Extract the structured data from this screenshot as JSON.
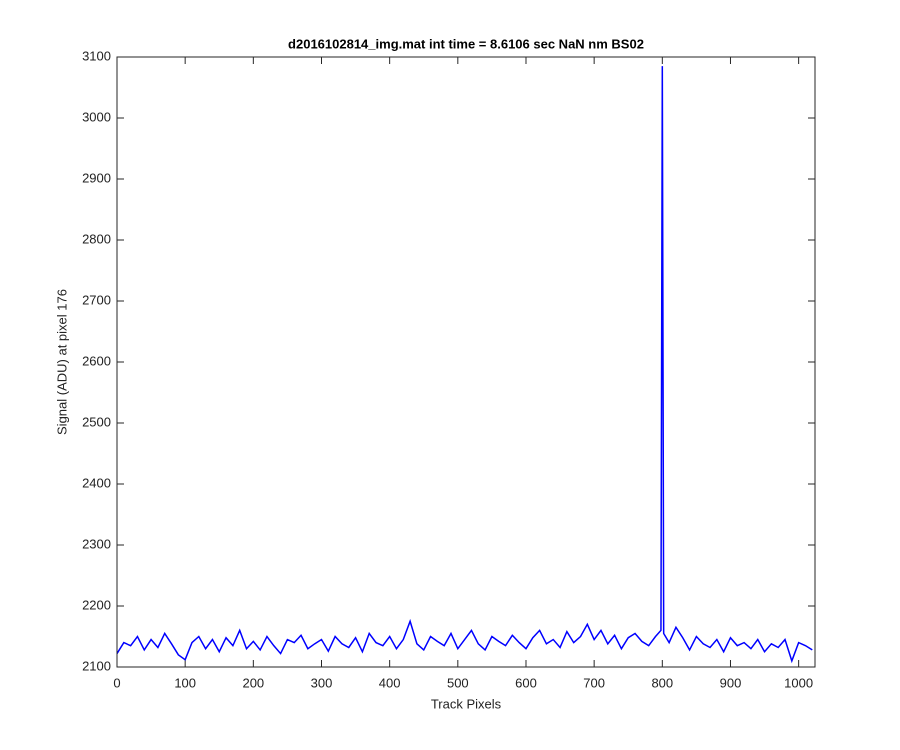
{
  "chart_data": {
    "type": "line",
    "title": "d2016102814_img.mat int time = 8.6106 sec  NaN nm BS02",
    "x_label": "Track Pixels",
    "y_label": "Signal (ADU) at pixel 176",
    "x": [
      0,
      10,
      20,
      30,
      40,
      50,
      60,
      70,
      80,
      90,
      100,
      110,
      120,
      130,
      140,
      150,
      160,
      170,
      180,
      190,
      200,
      210,
      220,
      230,
      240,
      250,
      260,
      270,
      280,
      290,
      300,
      310,
      320,
      330,
      340,
      350,
      360,
      370,
      380,
      390,
      400,
      410,
      420,
      430,
      440,
      450,
      460,
      470,
      480,
      490,
      500,
      510,
      520,
      530,
      540,
      550,
      560,
      570,
      580,
      590,
      600,
      610,
      620,
      630,
      640,
      650,
      660,
      670,
      680,
      690,
      700,
      710,
      720,
      730,
      740,
      750,
      760,
      770,
      780,
      790,
      798,
      800,
      802,
      810,
      820,
      830,
      840,
      850,
      860,
      870,
      880,
      890,
      900,
      910,
      920,
      930,
      940,
      950,
      960,
      970,
      980,
      990,
      1000,
      1010,
      1020
    ],
    "series": [
      {
        "color": "#0000ff",
        "values": [
          2122,
          2140,
          2135,
          2150,
          2128,
          2145,
          2132,
          2155,
          2138,
          2120,
          2112,
          2140,
          2150,
          2130,
          2145,
          2125,
          2148,
          2135,
          2160,
          2130,
          2142,
          2128,
          2150,
          2135,
          2122,
          2145,
          2140,
          2152,
          2130,
          2138,
          2145,
          2126,
          2150,
          2138,
          2132,
          2148,
          2125,
          2155,
          2140,
          2135,
          2150,
          2130,
          2145,
          2175,
          2138,
          2128,
          2150,
          2142,
          2135,
          2155,
          2130,
          2145,
          2160,
          2138,
          2128,
          2150,
          2142,
          2135,
          2152,
          2140,
          2130,
          2148,
          2160,
          2138,
          2145,
          2132,
          2158,
          2140,
          2150,
          2170,
          2145,
          2160,
          2138,
          2152,
          2130,
          2148,
          2155,
          2142,
          2135,
          2150,
          2160,
          3085,
          2155,
          2140,
          2165,
          2148,
          2128,
          2150,
          2138,
          2132,
          2145,
          2125,
          2148,
          2135,
          2140,
          2130,
          2145,
          2125,
          2138,
          2132,
          2145,
          2110,
          2140,
          2135,
          2128
        ]
      }
    ],
    "xlim": [
      0,
      1024
    ],
    "xticks": [
      0,
      100,
      200,
      300,
      400,
      500,
      600,
      700,
      800,
      900,
      1000
    ],
    "ylim": [
      2100,
      3100
    ],
    "yticks": [
      2100,
      2200,
      2300,
      2400,
      2500,
      2600,
      2700,
      2800,
      2900,
      3000,
      3100
    ]
  }
}
